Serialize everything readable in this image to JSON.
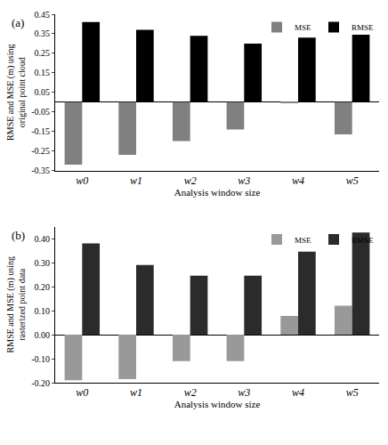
{
  "chart_data": [
    {
      "type": "bar",
      "title": "(a)",
      "x_label": "Analysis window size",
      "y_label": "RMSE and MSE (m) using original point cloud",
      "categories": [
        "w0",
        "w1",
        "w2",
        "w3",
        "w4",
        "w5"
      ],
      "series": [
        {
          "name": "MSE",
          "color": "#808080",
          "values": [
            -0.32,
            -0.27,
            -0.2,
            -0.14,
            -0.005,
            -0.165
          ]
        },
        {
          "name": "RMSE",
          "color": "#000000",
          "values": [
            0.41,
            0.37,
            0.34,
            0.3,
            0.33,
            0.345
          ]
        }
      ],
      "ylim": [
        -0.35,
        0.45
      ],
      "yticks": [
        -0.35,
        -0.25,
        -0.15,
        -0.05,
        0.05,
        0.15,
        0.25,
        0.35,
        0.45
      ],
      "grid": false,
      "legend": "top right"
    },
    {
      "type": "bar",
      "title": "(b)",
      "x_label": "Analysis window size",
      "y_label": "RMSE and MSE (m) using rasterized point data",
      "categories": [
        "w0",
        "w1",
        "w2",
        "w3",
        "w4",
        "w5"
      ],
      "series": [
        {
          "name": "MSE",
          "color": "#999999",
          "values": [
            -0.19,
            -0.185,
            -0.11,
            -0.11,
            0.078,
            0.12
          ]
        },
        {
          "name": "RMSE",
          "color": "#2b2b2b",
          "values": [
            0.38,
            0.29,
            0.245,
            0.245,
            0.345,
            0.425
          ]
        }
      ],
      "ylim": [
        -0.2,
        0.45
      ],
      "yticks": [
        {
          "value": -0.2,
          "label": "-0.20"
        },
        {
          "value": -0.1,
          "label": "-0.10"
        },
        {
          "value": 0,
          "label": "0.00"
        },
        {
          "value": 0.1,
          "label": "0.10"
        },
        {
          "value": 0.2,
          "label": "0.20"
        },
        {
          "value": 0.3,
          "label": "0.30"
        },
        {
          "value": 0.4,
          "label": "0.40"
        }
      ],
      "grid": false,
      "legend": "top right"
    }
  ]
}
